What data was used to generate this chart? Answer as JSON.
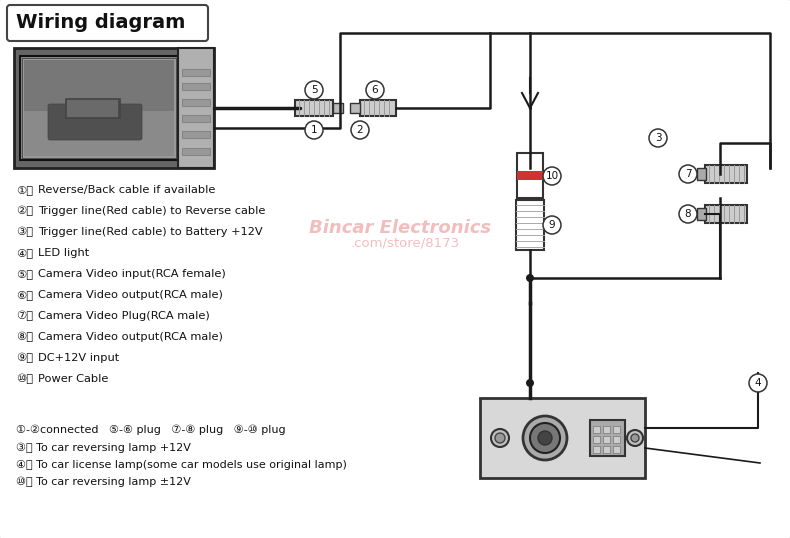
{
  "title": "Wiring diagram",
  "bg_color": "#f0f0f0",
  "line_color": "#1a1a1a",
  "text_color": "#111111",
  "legend_items": [
    [
      "①",
      "Reverse/Back cable if available"
    ],
    [
      "②",
      "Trigger line(Red cable) to Reverse cable"
    ],
    [
      "③",
      "Trigger line(Red cable) to Battery +12V"
    ],
    [
      "④",
      "LED light"
    ],
    [
      "⑤",
      "Camera Video input(RCA female)"
    ],
    [
      "⑥",
      "Camera Video output(RCA male)"
    ],
    [
      "⑦",
      "Camera Video Plug(RCA male)"
    ],
    [
      "⑧",
      "Camera Video output(RCA male)"
    ],
    [
      "⑨",
      "DC+12V input"
    ],
    [
      "⑩",
      "Power Cable"
    ]
  ],
  "footer_line1": "①-②connected   ⑤-⑥ plug   ⑦-⑧ plug   ⑨-⑩ plug",
  "footer_line2": "③： To car reversing lamp +12V",
  "footer_line3": "④： To car license lamp(some car models use original lamp)",
  "footer_line4": "⑩： To car reversing lamp ±12V",
  "watermark1": "Bincar Electronics",
  "watermark2": ".com/store/8173"
}
